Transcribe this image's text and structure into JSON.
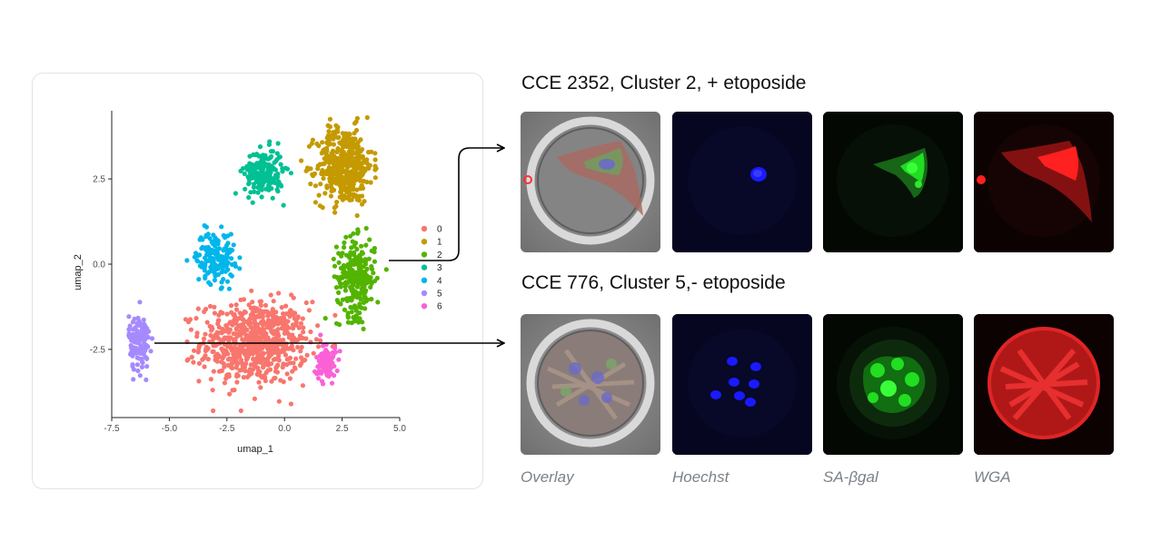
{
  "chart_data": {
    "type": "scatter",
    "xlabel": "umap_1",
    "ylabel": "umap_2",
    "xlim": [
      -7.5,
      5.0
    ],
    "ylim": [
      -4.5,
      4.5
    ],
    "xticks": [
      -7.5,
      -5.0,
      -2.5,
      0.0,
      2.5,
      5.0
    ],
    "yticks": [
      -2.5,
      0.0,
      2.5
    ],
    "xtick_labels": [
      "-7.5",
      "-5.0",
      "-2.5",
      "0.0",
      "2.5",
      "5.0"
    ],
    "ytick_labels": [
      "-2.5",
      "0.0",
      "2.5"
    ],
    "grid": false,
    "legend_placement": "right",
    "series": [
      {
        "name": "0",
        "color": "#F8766D",
        "count": 700,
        "center": [
          -1.3,
          -2.3
        ],
        "spread": [
          1.55,
          0.8
        ]
      },
      {
        "name": "1",
        "color": "#C49A00",
        "count": 450,
        "center": [
          2.6,
          2.9
        ],
        "spread": [
          0.8,
          0.75
        ]
      },
      {
        "name": "2",
        "color": "#53B400",
        "count": 260,
        "center": [
          3.1,
          -0.4
        ],
        "spread": [
          0.55,
          0.75
        ]
      },
      {
        "name": "3",
        "color": "#00C094",
        "count": 200,
        "center": [
          -0.9,
          2.7
        ],
        "spread": [
          0.55,
          0.45
        ]
      },
      {
        "name": "4",
        "color": "#00B6EB",
        "count": 160,
        "center": [
          -3.0,
          0.2
        ],
        "spread": [
          0.55,
          0.5
        ]
      },
      {
        "name": "5",
        "color": "#A58AFF",
        "count": 130,
        "center": [
          -6.3,
          -2.3
        ],
        "spread": [
          0.3,
          0.55
        ]
      },
      {
        "name": "6",
        "color": "#FB61D7",
        "count": 80,
        "center": [
          1.8,
          -2.9
        ],
        "spread": [
          0.28,
          0.4
        ]
      }
    ]
  },
  "panels": [
    {
      "title": "CCE 2352, Cluster 2, + etoposide"
    },
    {
      "title": "CCE 776, Cluster 5,- etoposide"
    }
  ],
  "channels": [
    {
      "label": "Overlay",
      "icon": "overlay-image"
    },
    {
      "label": "Hoechst",
      "icon": "nuclear-stain-image"
    },
    {
      "label": "SA-βgal",
      "icon": "senescence-stain-image"
    },
    {
      "label": "WGA",
      "icon": "membrane-stain-image"
    }
  ],
  "colors": {
    "hoechst": "#1a1aff",
    "sa_bgal": "#22dd22",
    "wga": "#ff2020",
    "arrow": "#000000",
    "label": "#7b8189"
  }
}
